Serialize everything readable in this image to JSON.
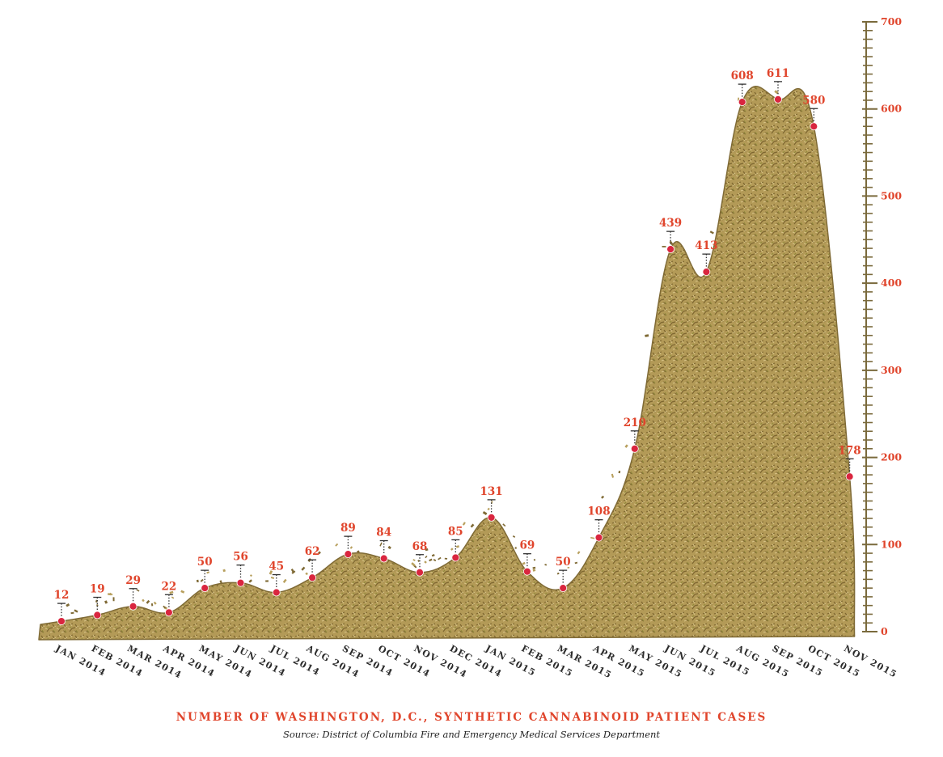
{
  "colors": {
    "accent": "#e0452c",
    "axis": "#7a6a3c",
    "herb_fill": "#b8a05e",
    "herb_dark": "#7f6a35",
    "marker": "#d9263f"
  },
  "caption": {
    "title": "NUMBER OF WASHINGTON, D.C., SYNTHETIC CANNABINOID PATIENT CASES",
    "source": "Source: District of Columbia Fire and Emergency Medical Services Department"
  },
  "chart_data": {
    "type": "area",
    "title": "NUMBER OF WASHINGTON, D.C., SYNTHETIC CANNABINOID PATIENT CASES",
    "subtitle": "Source: District of Columbia Fire and Emergency Medical Services Department",
    "xlabel": "",
    "ylabel": "",
    "categories": [
      "JAN 2014",
      "FEB 2014",
      "MAR 2014",
      "APR 2014",
      "MAY 2014",
      "JUN 2014",
      "JUL 2014",
      "AUG 2014",
      "SEP 2014",
      "OCT 2014",
      "NOV 2014",
      "DEC 2014",
      "JAN 2015",
      "FEB 2015",
      "MAR 2015",
      "APR 2015",
      "MAY 2015",
      "JUN 2015",
      "JUL 2015",
      "AUG 2015",
      "SEP 2015",
      "OCT 2015",
      "NOV 2015"
    ],
    "values": [
      12,
      19,
      29,
      22,
      50,
      56,
      45,
      62,
      89,
      84,
      68,
      85,
      131,
      69,
      50,
      108,
      210,
      439,
      413,
      608,
      611,
      580,
      178
    ],
    "ylim": [
      0,
      700
    ],
    "y_ticks": [
      0,
      100,
      200,
      300,
      400,
      500,
      600,
      700
    ],
    "axis_position": "right",
    "grid": false,
    "legend": "none"
  }
}
